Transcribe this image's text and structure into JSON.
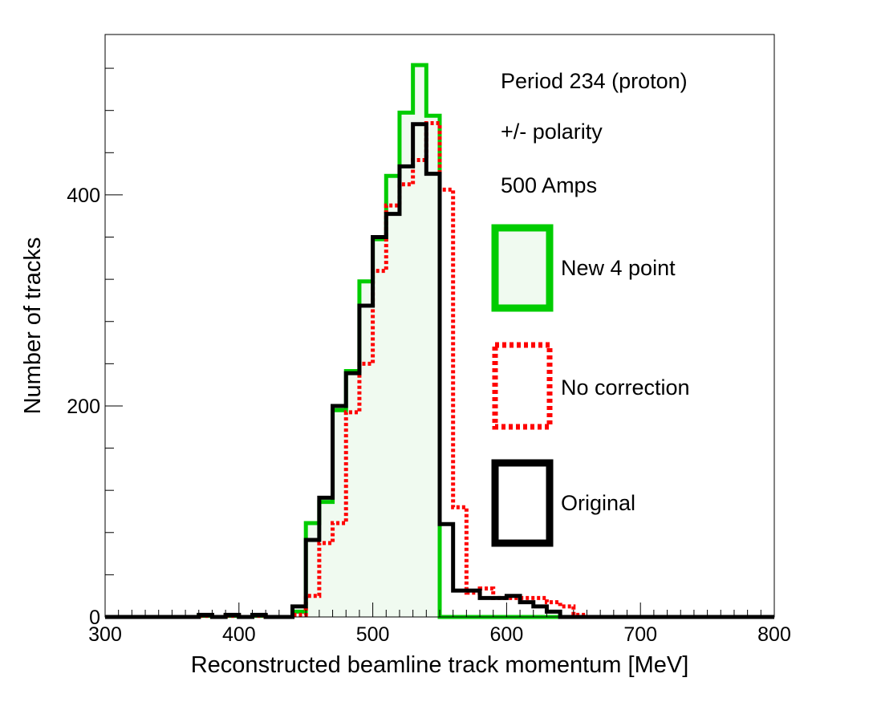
{
  "chart_data": {
    "type": "histogram",
    "xlabel": "Reconstructed beamline track momentum [MeV]",
    "ylabel": "Number of tracks",
    "xlim": [
      300,
      800
    ],
    "ylim": [
      0,
      552
    ],
    "xticks": [
      300,
      400,
      500,
      600,
      700,
      800
    ],
    "yticks": [
      0,
      200,
      400
    ],
    "x_tick_labels": [
      "300",
      "400",
      "500",
      "600",
      "700",
      "800"
    ],
    "y_tick_labels": [
      "0",
      "200",
      "400"
    ],
    "bin_edges": [
      300,
      310,
      320,
      330,
      340,
      350,
      360,
      370,
      380,
      390,
      400,
      410,
      420,
      430,
      440,
      450,
      460,
      470,
      480,
      490,
      500,
      510,
      520,
      530,
      540,
      550,
      560,
      570,
      580,
      590,
      600,
      610,
      620,
      630,
      640,
      650,
      660,
      670,
      680,
      690,
      700,
      710,
      720,
      730,
      740,
      750,
      760,
      770,
      780,
      790,
      800
    ],
    "annotations": [
      "Period 234 (proton)",
      "+/- polarity",
      "500 Amps"
    ],
    "legend_position": "right",
    "series": [
      {
        "name": "New 4 point",
        "color": "#00cc00",
        "fill": "#f0faf0",
        "style": "solid",
        "values": [
          0,
          0,
          0,
          0,
          0,
          0,
          0,
          1,
          0,
          1,
          0,
          1,
          0,
          0,
          5,
          89,
          109,
          196,
          233,
          318,
          358,
          418,
          478,
          523,
          475,
          0,
          0,
          0,
          0,
          0,
          0,
          0,
          0,
          0,
          0,
          0,
          0,
          0,
          0,
          0,
          0,
          0,
          0,
          0,
          0,
          0,
          0,
          0,
          0,
          0
        ]
      },
      {
        "name": "No correction",
        "color": "#ff0000",
        "fill": "none",
        "style": "dotted",
        "values": [
          0,
          0,
          0,
          0,
          0,
          0,
          0,
          1,
          0,
          1,
          0,
          1,
          0,
          0,
          2,
          20,
          70,
          89,
          194,
          240,
          328,
          390,
          410,
          433,
          468,
          405,
          104,
          23,
          27,
          18,
          18,
          18,
          18,
          14,
          10,
          2,
          0,
          0,
          0,
          0,
          0,
          0,
          0,
          0,
          0,
          0,
          0,
          0,
          0,
          0
        ]
      },
      {
        "name": "Original",
        "color": "#000000",
        "fill": "none",
        "style": "solid",
        "values": [
          0,
          0,
          0,
          0,
          0,
          0,
          0,
          2,
          0,
          2,
          0,
          2,
          0,
          0,
          10,
          73,
          113,
          200,
          231,
          295,
          360,
          382,
          427,
          467,
          420,
          88,
          25,
          25,
          18,
          18,
          20,
          14,
          10,
          5,
          0,
          0,
          0,
          0,
          0,
          0,
          0,
          0,
          0,
          0,
          0,
          0,
          0,
          0,
          0,
          0
        ]
      }
    ]
  }
}
